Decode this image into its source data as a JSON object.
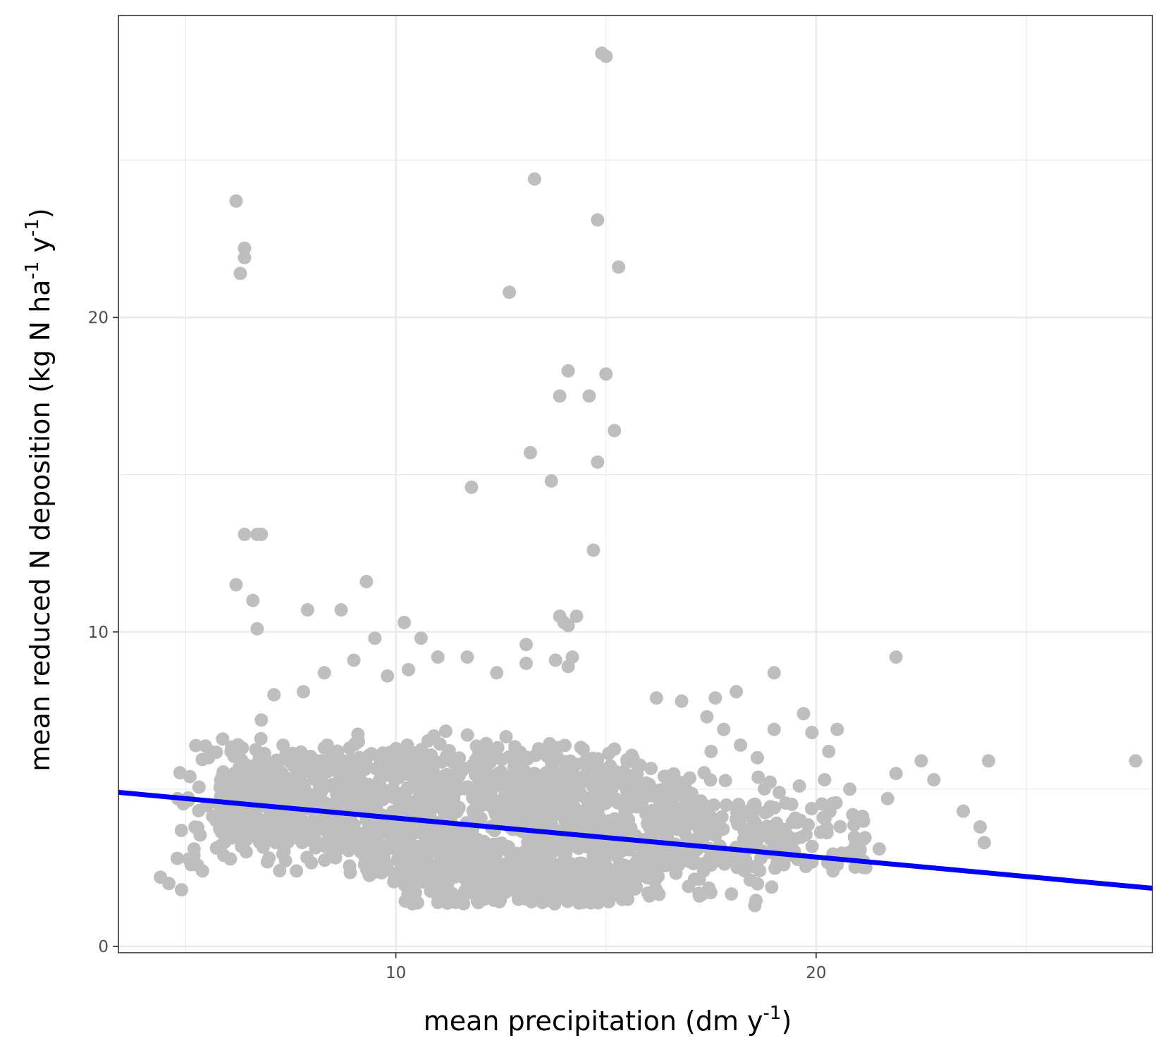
{
  "chart_data": {
    "type": "scatter",
    "title": "",
    "xlabel": {
      "text": "mean precipitation (dm y",
      "sup": "-1",
      "close": ")"
    },
    "ylabel": {
      "parts": [
        "mean reduced N deposition (kg N ha",
        " y",
        ")"
      ],
      "sups": [
        "-1",
        "-1"
      ]
    },
    "xlim": [
      3.4,
      28
    ],
    "ylim": [
      -0.2,
      29.6
    ],
    "x_ticks": [
      10,
      20
    ],
    "x_tick_labels": [
      "10",
      "20"
    ],
    "x_minor": [
      5,
      15,
      25
    ],
    "y_ticks": [
      0,
      10,
      20
    ],
    "y_tick_labels": [
      "0",
      "10",
      "20"
    ],
    "y_minor": [
      5,
      15,
      25
    ],
    "grid": true,
    "point_color": "#bebebe",
    "line_color": "#0000ff",
    "trend_line": {
      "x": [
        3.4,
        28
      ],
      "y": [
        4.9,
        1.85
      ]
    },
    "series": [
      {
        "values": [
          [
            14.9,
            28.4
          ],
          [
            15.0,
            28.3
          ],
          [
            13.3,
            24.4
          ],
          [
            6.2,
            23.7
          ],
          [
            14.8,
            23.1
          ],
          [
            6.4,
            22.2
          ],
          [
            6.4,
            21.9
          ],
          [
            6.3,
            21.4
          ],
          [
            15.3,
            21.6
          ],
          [
            12.7,
            20.8
          ],
          [
            14.1,
            18.3
          ],
          [
            15.0,
            18.2
          ],
          [
            13.9,
            17.5
          ],
          [
            14.6,
            17.5
          ],
          [
            15.2,
            16.4
          ],
          [
            13.2,
            15.7
          ],
          [
            14.8,
            15.4
          ],
          [
            13.7,
            14.8
          ],
          [
            11.8,
            14.6
          ],
          [
            6.4,
            13.1
          ],
          [
            6.8,
            13.1
          ],
          [
            6.7,
            13.1
          ],
          [
            14.7,
            12.6
          ],
          [
            6.2,
            11.5
          ],
          [
            9.3,
            11.6
          ],
          [
            6.6,
            11.0
          ],
          [
            7.9,
            10.7
          ],
          [
            8.7,
            10.7
          ],
          [
            6.7,
            10.1
          ],
          [
            13.9,
            10.5
          ],
          [
            14.3,
            10.5
          ],
          [
            14.0,
            10.3
          ],
          [
            14.1,
            10.2
          ],
          [
            10.2,
            10.3
          ],
          [
            9.5,
            9.8
          ],
          [
            10.6,
            9.8
          ],
          [
            13.1,
            9.6
          ],
          [
            21.9,
            9.2
          ],
          [
            19.0,
            8.7
          ],
          [
            11.0,
            9.2
          ],
          [
            11.7,
            9.2
          ],
          [
            13.8,
            9.1
          ],
          [
            13.1,
            9.0
          ],
          [
            14.2,
            9.2
          ],
          [
            8.3,
            8.7
          ],
          [
            9.0,
            9.1
          ],
          [
            10.3,
            8.8
          ],
          [
            9.8,
            8.6
          ],
          [
            12.4,
            8.7
          ],
          [
            14.1,
            8.9
          ],
          [
            18.1,
            8.1
          ],
          [
            17.6,
            7.9
          ],
          [
            16.8,
            7.8
          ],
          [
            16.2,
            7.9
          ],
          [
            19.7,
            7.4
          ],
          [
            17.4,
            7.3
          ],
          [
            20.5,
            6.9
          ],
          [
            19.9,
            6.8
          ],
          [
            19.0,
            6.9
          ],
          [
            17.8,
            6.9
          ],
          [
            18.2,
            6.4
          ],
          [
            18.6,
            6.0
          ],
          [
            17.5,
            6.2
          ],
          [
            20.3,
            6.2
          ],
          [
            22.5,
            5.9
          ],
          [
            24.1,
            5.9
          ],
          [
            27.6,
            5.9
          ],
          [
            21.9,
            5.5
          ],
          [
            22.8,
            5.3
          ],
          [
            20.2,
            5.3
          ],
          [
            20.8,
            5.0
          ],
          [
            21.7,
            4.7
          ],
          [
            19.6,
            5.1
          ],
          [
            23.5,
            4.3
          ],
          [
            23.9,
            3.8
          ],
          [
            21.5,
            3.1
          ],
          [
            24.0,
            3.3
          ],
          [
            20.5,
            2.6
          ],
          [
            20.4,
            2.4
          ],
          [
            5.1,
            5.4
          ],
          [
            4.6,
            2.0
          ],
          [
            4.4,
            2.2
          ],
          [
            4.9,
            1.8
          ],
          [
            5.4,
            2.4
          ],
          [
            4.8,
            2.8
          ],
          [
            5.2,
            3.1
          ],
          [
            7.1,
            8.0
          ],
          [
            7.8,
            8.1
          ],
          [
            6.8,
            7.2
          ],
          [
            5.8,
            4.5
          ],
          [
            16.0,
            1.7
          ],
          [
            16.4,
            2.6
          ],
          [
            12.1,
            1.5
          ],
          [
            11.0,
            1.4
          ],
          [
            13.5,
            1.5
          ],
          [
            14.2,
            1.5
          ]
        ]
      }
    ]
  }
}
